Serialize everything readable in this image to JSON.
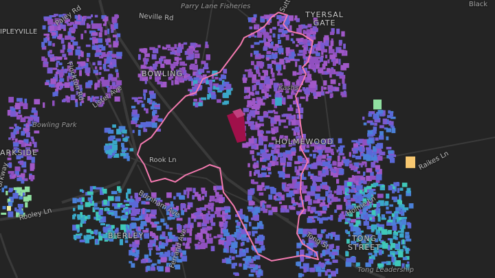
{
  "map": {
    "labels": {
      "parry_lane": "Parry Lane Fisheries",
      "neville_rd": "Neville Rd",
      "ripleyville": "IPLEYVILLE",
      "paley_rd": "Paley Rd",
      "flockton_rd": "Flockton Rd",
      "lister_ave": "Lister Ave",
      "bowling": "BOWLING",
      "bowling_park": "Bowling Park",
      "parkside": "ARKSIDE",
      "parkway": "Parkway",
      "rook_ln": "Rook Ln",
      "rooley_ln": "Rooley Ln",
      "burnham_ave": "Burnham Ave",
      "bierley": "BIERLEY",
      "ferrand_ave": "Ferrand Ave",
      "sutton": "Sutto",
      "tyersal_gate": "TYERSAL GATE",
      "kashs": "Kashs",
      "holmewood": "HOLMEWOOD",
      "raikes_ln": "Raikes Ln",
      "holme_ln": "Holme Ln",
      "tong_st": "Tong St",
      "tong_street": "TONG STREET",
      "tong_leadership": "Tong Leadership",
      "black": "Black"
    },
    "colors": {
      "background": "#242424",
      "road": "#3a3a3a",
      "boundary": "#f47ab0",
      "highlight_building": "#a0104a",
      "building_palette": [
        "#9050c0",
        "#7a5ad0",
        "#a058c8",
        "#5a68d8",
        "#4a80d8",
        "#3aa8c8",
        "#40c8b8",
        "#90e0a0",
        "#f0f0a0",
        "#f8c870"
      ]
    }
  }
}
